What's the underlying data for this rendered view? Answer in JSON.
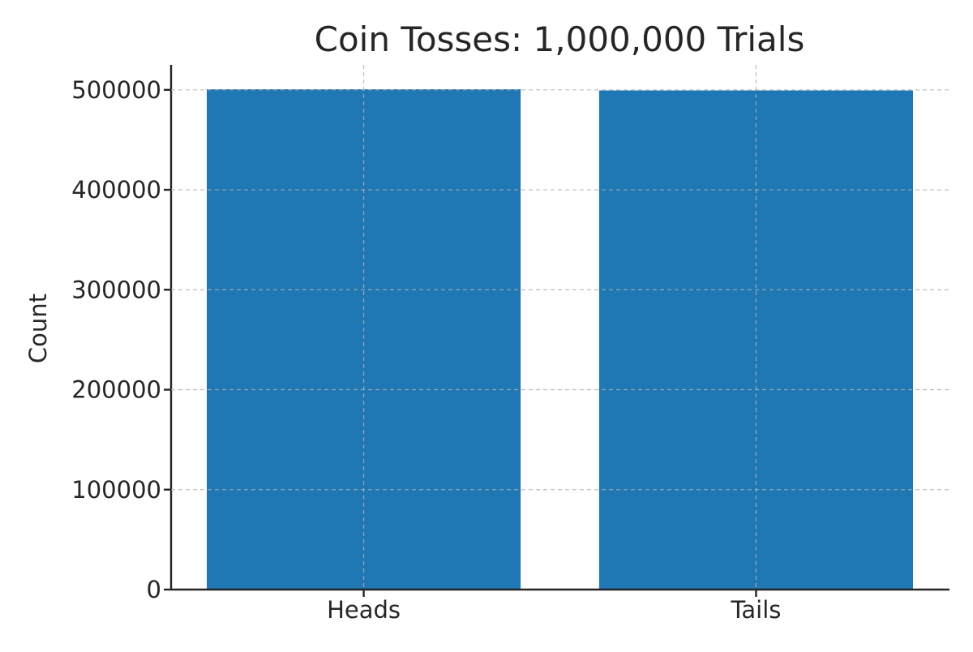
{
  "chart_data": {
    "type": "bar",
    "title": "Coin Tosses: 1,000,000 Trials",
    "xlabel": "",
    "ylabel": "Count",
    "categories": [
      "Heads",
      "Tails"
    ],
    "values": [
      500600,
      499400
    ],
    "ylim": [
      0,
      525000
    ],
    "yticks": [
      0,
      100000,
      200000,
      300000,
      400000,
      500000
    ],
    "ytick_labels": [
      "0",
      "100000",
      "200000",
      "300000",
      "400000",
      "500000"
    ],
    "grid": true,
    "legend": "none",
    "bar_color": "#1f77b4"
  }
}
